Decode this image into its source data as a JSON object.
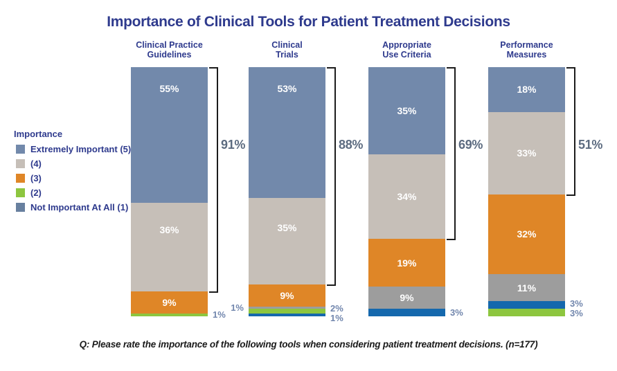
{
  "title": "Importance of Clinical Tools for Patient Treatment Decisions",
  "legend": {
    "header": "Importance",
    "items": [
      {
        "label": "Extremely Important (5)",
        "color": "#7289ab"
      },
      {
        "label": "(4)",
        "color": "#c6bfb8"
      },
      {
        "label": "(3)",
        "color": "#df8627"
      },
      {
        "label": "(2)",
        "color": "#8dc63f"
      },
      {
        "label": "Not Important At All (1)",
        "color": "#68809f"
      }
    ]
  },
  "footnote": "Q: Please rate the importance of the following tools when considering patient treatment decisions.  (n=177)",
  "chart_data": {
    "type": "stacked-bar",
    "unit": "%",
    "orientation": "vertical",
    "axis": "none",
    "categories": [
      "Clinical Practice Guidelines",
      "Clinical Trials",
      "Appropriate Use Criteria",
      "Performance Measures"
    ],
    "colors": {
      "slate": "#7289ab",
      "tan": "#c6bfb8",
      "orange": "#df8627",
      "green": "#8dc63f",
      "gray": "#9d9d9d",
      "blue": "#1568ad"
    },
    "bars": [
      {
        "category": "Clinical Practice Guidelines",
        "header_lines": [
          "Clinical Practice",
          "Guidelines"
        ],
        "bracket_total": "91%",
        "bracket_span": 91,
        "segments": [
          {
            "key": "slate",
            "value": 55,
            "label": "55%",
            "label_pos": "inside"
          },
          {
            "key": "tan",
            "value": 36,
            "label": "36%",
            "label_pos": "inside"
          },
          {
            "key": "orange",
            "value": 9,
            "label": "9%",
            "label_pos": "inside"
          },
          {
            "key": "green",
            "value": 1,
            "label": "1%",
            "label_pos": "right"
          }
        ]
      },
      {
        "category": "Clinical Trials",
        "header_lines": [
          "Clinical",
          "Trials"
        ],
        "bracket_total": "88%",
        "bracket_span": 88,
        "segments": [
          {
            "key": "slate",
            "value": 53,
            "label": "53%",
            "label_pos": "inside"
          },
          {
            "key": "tan",
            "value": 35,
            "label": "35%",
            "label_pos": "inside"
          },
          {
            "key": "orange",
            "value": 9,
            "label": "9%",
            "label_pos": "inside"
          },
          {
            "key": "gray",
            "value": 1,
            "label": "1%",
            "label_pos": "left"
          },
          {
            "key": "green",
            "value": 2,
            "label": "2%",
            "label_pos": "right"
          },
          {
            "key": "blue",
            "value": 1,
            "label": "1%",
            "label_pos": "right"
          }
        ]
      },
      {
        "category": "Appropriate Use Criteria",
        "header_lines": [
          "Appropriate",
          "Use Criteria"
        ],
        "bracket_total": "69%",
        "bracket_span": 69,
        "segments": [
          {
            "key": "slate",
            "value": 35,
            "label": "35%",
            "label_pos": "inside"
          },
          {
            "key": "tan",
            "value": 34,
            "label": "34%",
            "label_pos": "inside"
          },
          {
            "key": "orange",
            "value": 19,
            "label": "19%",
            "label_pos": "inside"
          },
          {
            "key": "gray",
            "value": 9,
            "label": "9%",
            "label_pos": "inside"
          },
          {
            "key": "blue",
            "value": 3,
            "label": "3%",
            "label_pos": "right"
          }
        ]
      },
      {
        "category": "Performance Measures",
        "header_lines": [
          "Performance",
          "Measures"
        ],
        "bracket_total": "51%",
        "bracket_span": 51,
        "segments": [
          {
            "key": "slate",
            "value": 18,
            "label": "18%",
            "label_pos": "inside"
          },
          {
            "key": "tan",
            "value": 33,
            "label": "33%",
            "label_pos": "inside"
          },
          {
            "key": "orange",
            "value": 32,
            "label": "32%",
            "label_pos": "inside"
          },
          {
            "key": "gray",
            "value": 11,
            "label": "11%",
            "label_pos": "inside"
          },
          {
            "key": "blue",
            "value": 3,
            "label": "3%",
            "label_pos": "right"
          },
          {
            "key": "green",
            "value": 3,
            "label": "3%",
            "label_pos": "right"
          }
        ]
      }
    ]
  }
}
